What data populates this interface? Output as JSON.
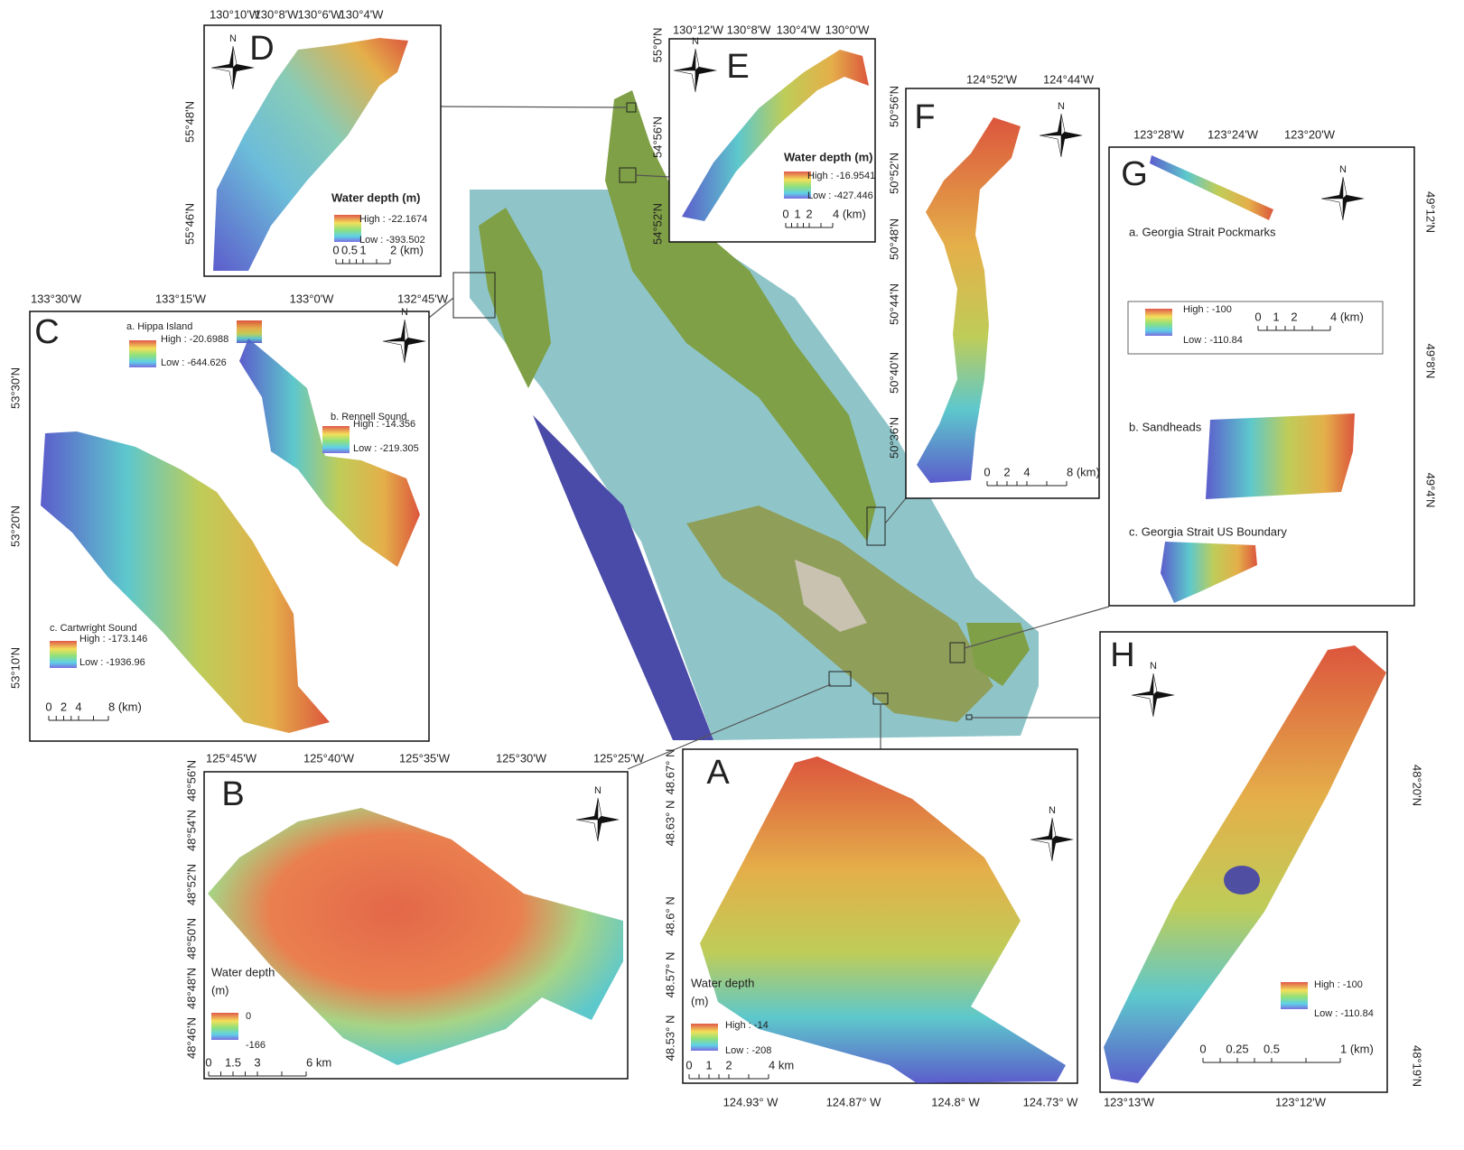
{
  "panels": [
    {
      "letter": "D",
      "north": "N",
      "lon_ticks": [
        "130°10'W",
        "130°8'W",
        "130°6'W",
        "130°4'W"
      ],
      "lat_ticks": [
        "55°48'N",
        "55°46'N"
      ],
      "legends": [
        {
          "title": [
            "Water depth (m)"
          ],
          "high": "High : -22.1674",
          "low": "Low : -393.502"
        }
      ],
      "scale": [
        "0",
        "0.5",
        "1",
        "2 (km)"
      ]
    },
    {
      "letter": "E",
      "north": "N",
      "lon_ticks": [
        "130°12'W",
        "130°8'W",
        "130°4'W",
        "130°0'W"
      ],
      "lat_ticks": [
        "55°0'N",
        "54°56'N",
        "54°52'N"
      ],
      "legends": [
        {
          "title": [
            "Water depth (m)"
          ],
          "high": "High : -16.9541",
          "low": "Low : -427.446"
        }
      ],
      "scale": [
        "0",
        "1",
        "2",
        "4 (km)"
      ]
    },
    {
      "letter": "F",
      "north": "N",
      "lon_ticks": [
        "124°52'W",
        "124°44'W"
      ],
      "lat_ticks": [
        "50°56'N",
        "50°52'N",
        "50°48'N",
        "50°44'N",
        "50°40'N",
        "50°36'N"
      ],
      "legends": [],
      "scale": [
        "0",
        "2",
        "4",
        "8 (km)"
      ]
    },
    {
      "letter": "G",
      "north": "N",
      "lon_ticks": [
        "123°28'W",
        "123°24'W",
        "123°20'W"
      ],
      "lat_ticks": [
        "49°12'N",
        "49°8'N",
        "49°4'N"
      ],
      "areas": [
        "a. Georgia Strait Pockmarks",
        "b. Sandheads",
        "c. Georgia Strait US Boundary"
      ],
      "legends": [
        {
          "title": [],
          "high": "High : -100",
          "low": "Low : -110.84"
        }
      ],
      "scale": [
        "0",
        "1",
        "2",
        "4 (km)"
      ]
    },
    {
      "letter": "C",
      "north": "N",
      "lon_ticks": [
        "133°30'W",
        "133°15'W",
        "133°0'W",
        "132°45'W"
      ],
      "lat_ticks": [
        "53°30'N",
        "53°20'N",
        "53°10'N"
      ],
      "legends": [
        {
          "title": [
            "a. Hippa Island"
          ],
          "high": "High : -20.6988",
          "low": "Low : -644.626"
        },
        {
          "title": [
            "b. Rennell Sound"
          ],
          "high": "High : -14.356",
          "low": "Low : -219.305"
        },
        {
          "title": [
            "c. Cartwright Sound"
          ],
          "high": "High : -173.146",
          "low": "Low : -1936.96"
        }
      ],
      "scale": [
        "0",
        "2",
        "4",
        "8 (km)"
      ]
    },
    {
      "letter": "B",
      "north": "N",
      "lon_ticks": [
        "125°45'W",
        "125°40'W",
        "125°35'W",
        "125°30'W",
        "125°25'W"
      ],
      "lat_ticks": [
        "48°56'N",
        "48°54'N",
        "48°52'N",
        "48°50'N",
        "48°48'N",
        "48°46'N"
      ],
      "legends": [
        {
          "title": [
            "Water depth",
            "(m)"
          ],
          "high": "0",
          "low": "-166"
        }
      ],
      "scale": [
        "0",
        "1.5",
        "3",
        "6 km"
      ]
    },
    {
      "letter": "A",
      "north": "N",
      "lon_ticks": [
        "124.93° W",
        "124.87° W",
        "124.8° W",
        "124.73° W"
      ],
      "lat_ticks": [
        "48.67° N",
        "48.63° N",
        "48.6° N",
        "48.57° N",
        "48.53° N"
      ],
      "legends": [
        {
          "title": [
            "Water depth",
            "(m)"
          ],
          "high": "High : -14",
          "low": "Low : -208"
        }
      ],
      "scale": [
        "0",
        "1",
        "2",
        "4 km"
      ]
    },
    {
      "letter": "H",
      "north": "N",
      "lon_ticks": [
        "123°13'W",
        "123°12'W"
      ],
      "lat_ticks": [
        "48°20'N",
        "48°19'N"
      ],
      "legends": [
        {
          "title": [],
          "high": "High : -100",
          "low": "Low : -110.84"
        }
      ],
      "scale": [
        "0",
        "0.25",
        "0.5",
        "1 (km)"
      ]
    }
  ]
}
